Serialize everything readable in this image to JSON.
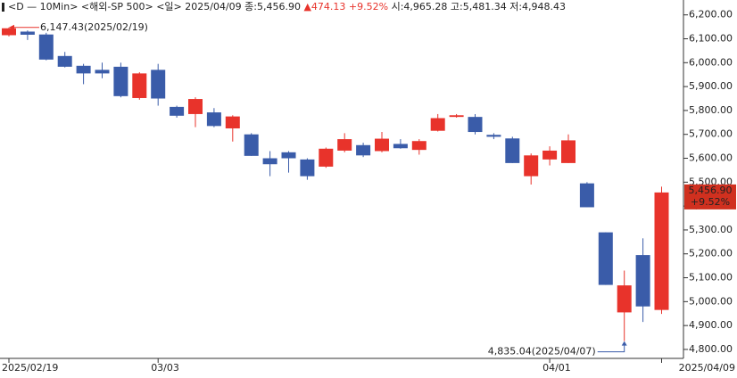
{
  "chart_data": {
    "type": "candlestick",
    "header": [
      "<D — 10Min>",
      "<해외-SP 500>",
      "<일>",
      "2025/04/09",
      "종:5,456.90",
      "▲474.13",
      "+9.52%",
      "시:4,965.28",
      "고:5,481.34",
      "저:4,948.43"
    ],
    "categories": [
      "2025/02/19",
      null,
      null,
      null,
      null,
      null,
      null,
      null,
      "03/03",
      null,
      null,
      null,
      null,
      null,
      null,
      null,
      null,
      null,
      null,
      null,
      null,
      null,
      null,
      null,
      null,
      null,
      null,
      null,
      null,
      "04/01",
      null,
      null,
      null,
      null,
      null,
      "2025/04/09"
    ],
    "open": [
      6115,
      6130,
      6118,
      6028,
      5987,
      5970,
      5983,
      5852,
      5970,
      5815,
      5785,
      5792,
      5725,
      5700,
      5600,
      5625,
      5595,
      5565,
      5632,
      5655,
      5630,
      5660,
      5635,
      5715,
      5773,
      5773,
      5698,
      5683,
      5525,
      5595,
      5580,
      5495,
      5290,
      4955,
      5195,
      4965.28
    ],
    "high": [
      6147.43,
      6135,
      6125,
      6045,
      5995,
      6000,
      6000,
      5960,
      5995,
      5820,
      5855,
      5810,
      5780,
      5705,
      5630,
      5630,
      5600,
      5645,
      5705,
      5665,
      5710,
      5680,
      5680,
      5785,
      5785,
      5785,
      5705,
      5690,
      5620,
      5650,
      5700,
      5500,
      5290,
      5130,
      5265,
      5481.34
    ],
    "low": [
      6110,
      6095,
      6010,
      5980,
      5910,
      5935,
      5855,
      5845,
      5820,
      5770,
      5730,
      5730,
      5670,
      5610,
      5525,
      5540,
      5510,
      5560,
      5625,
      5605,
      5625,
      5640,
      5615,
      5712,
      5770,
      5700,
      5680,
      5580,
      5490,
      5570,
      5580,
      5395,
      5070,
      4835.04,
      4915,
      4948.43
    ],
    "close": [
      6144,
      6117,
      6013,
      5983,
      5955,
      5955,
      5860,
      5955,
      5850,
      5778,
      5848,
      5735,
      5775,
      5610,
      5575,
      5600,
      5525,
      5640,
      5680,
      5612,
      5682,
      5642,
      5672,
      5768,
      5780,
      5710,
      5690,
      5580,
      5612,
      5632,
      5675,
      5395,
      5070,
      5068,
      4980,
      5456.9
    ],
    "up_color": "#e8332b",
    "down_color": "#3a5ca9",
    "ylim": [
      4770,
      6225
    ],
    "yticks": [
      {
        "value": 4800,
        "label": "4,800.00"
      },
      {
        "value": 4900,
        "label": "4,900.00"
      },
      {
        "value": 5000,
        "label": "5,000.00"
      },
      {
        "value": 5100,
        "label": "5,100.00"
      },
      {
        "value": 5200,
        "label": "5,200.00"
      },
      {
        "value": 5300,
        "label": "5,300.00"
      },
      {
        "value": 5400,
        "label": "5,400.00"
      },
      {
        "value": 5500,
        "label": "5,500.00"
      },
      {
        "value": 5600,
        "label": "5,600.00"
      },
      {
        "value": 5700,
        "label": "5,700.00"
      },
      {
        "value": 5800,
        "label": "5,800.00"
      },
      {
        "value": 5900,
        "label": "5,900.00"
      },
      {
        "value": 6000,
        "label": "6,000.00"
      },
      {
        "value": 6100,
        "label": "6,100.00"
      },
      {
        "value": 6200,
        "label": "6,200.00"
      }
    ],
    "max_label": "6,147.43(2025/02/19)",
    "min_label": "4,835.04(2025/04/07)",
    "price_label": "5,456.90",
    "change_label": "+9.52%"
  }
}
